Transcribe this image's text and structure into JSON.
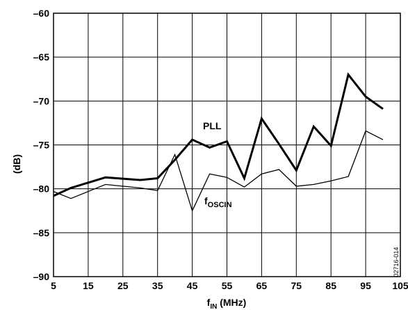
{
  "chart_data": {
    "type": "line",
    "xlabel": {
      "main": "f",
      "sub": "IN",
      "rest": " (MHz)"
    },
    "ylabel": "(dB)",
    "xlim": [
      5,
      105
    ],
    "ylim": [
      -90,
      -60
    ],
    "xticks": [
      5,
      15,
      25,
      35,
      45,
      55,
      65,
      75,
      85,
      95,
      105
    ],
    "yticks": [
      -60,
      -65,
      -70,
      -75,
      -80,
      -85,
      -90
    ],
    "xtick_labels": [
      "5",
      "15",
      "25",
      "35",
      "45",
      "55",
      "65",
      "75",
      "85",
      "95",
      "105"
    ],
    "ytick_labels": [
      "–60",
      "–65",
      "–70",
      "–75",
      "–80",
      "–85",
      "–90"
    ],
    "grid": true,
    "series": [
      {
        "name": "PLL",
        "color": "#000000",
        "emphasis": "heavy",
        "x": [
          5,
          10,
          20,
          30,
          35,
          40,
          45,
          50,
          55,
          60,
          65,
          70,
          75,
          80,
          85,
          90,
          95,
          100
        ],
        "y": [
          -80.8,
          -79.9,
          -78.7,
          -79.0,
          -78.8,
          -76.7,
          -74.4,
          -75.3,
          -74.6,
          -78.8,
          -72.0,
          -74.9,
          -77.9,
          -72.9,
          -75.1,
          -67.0,
          -69.5,
          -70.9
        ]
      },
      {
        "name": "OSCIN",
        "label": {
          "main": "f",
          "sub": "OSCIN"
        },
        "color": "#000000",
        "emphasis": "light",
        "x": [
          5,
          10,
          20,
          30,
          35,
          40,
          45,
          50,
          55,
          60,
          65,
          70,
          75,
          80,
          85,
          90,
          95,
          100
        ],
        "y": [
          -80.3,
          -81.1,
          -79.5,
          -79.9,
          -80.2,
          -76.1,
          -82.5,
          -78.3,
          -78.7,
          -79.8,
          -78.3,
          -77.8,
          -79.7,
          -79.5,
          -79.1,
          -78.6,
          -73.4,
          -74.4
        ]
      }
    ],
    "figure_code": "02716-014"
  }
}
